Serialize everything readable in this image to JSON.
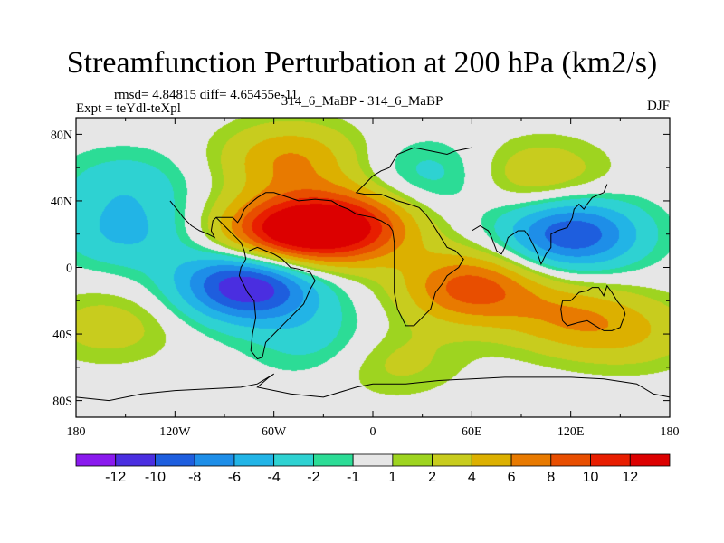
{
  "chart_data": {
    "type": "heatmap",
    "title": "Streamfunction Perturbation at 200 hPa (km2/s)",
    "stats_text": "rmsd= 4.84815 diff= 4.65455e-11",
    "experiment_text": "Expt = teYdl-teXpl",
    "comparison_text": "314_6_MaBP - 314_6_MaBP",
    "season": "DJF",
    "x_ticks": [
      "180",
      "120W",
      "60W",
      "0",
      "60E",
      "120E",
      "180"
    ],
    "x_tick_values": [
      -180,
      -120,
      -60,
      0,
      60,
      120,
      180
    ],
    "y_ticks": [
      "80N",
      "40N",
      "0",
      "40S",
      "80S"
    ],
    "y_tick_values": [
      80,
      40,
      0,
      -40,
      -80
    ],
    "xlim": [
      -180,
      180
    ],
    "ylim": [
      -90,
      90
    ],
    "colorbar": {
      "labels": [
        "-12",
        "-10",
        "-8",
        "-6",
        "-4",
        "-2",
        "-1",
        "1",
        "2",
        "4",
        "6",
        "8",
        "10",
        "12"
      ],
      "levels": [
        -12,
        -10,
        -8,
        -6,
        -4,
        -2,
        -1,
        1,
        2,
        4,
        6,
        8,
        10,
        12
      ],
      "colors": [
        "#8a1aee",
        "#4a2ee0",
        "#1e5ede",
        "#1e8ee8",
        "#22b4e6",
        "#2ed2d2",
        "#2cdc96",
        "#e6e6e6",
        "#9ed420",
        "#c8cc1e",
        "#dcb000",
        "#e87a00",
        "#e84e00",
        "#e81e00",
        "#dc0000"
      ]
    },
    "features": [
      {
        "type": "low",
        "lon": -75,
        "lat": -10,
        "value": -13
      },
      {
        "type": "low",
        "lon": 120,
        "lat": 20,
        "value": -10
      },
      {
        "type": "low",
        "lon": -150,
        "lat": 20,
        "value": -4
      },
      {
        "type": "low",
        "lon": -150,
        "lat": 50,
        "value": -3
      },
      {
        "type": "low",
        "lon": -30,
        "lat": -45,
        "value": -3
      },
      {
        "type": "low",
        "lon": 35,
        "lat": 55,
        "value": -3
      },
      {
        "type": "high",
        "lon": -55,
        "lat": 20,
        "value": 12
      },
      {
        "type": "high",
        "lon": -15,
        "lat": 25,
        "value": 11
      },
      {
        "type": "high",
        "lon": 60,
        "lat": -12,
        "value": 9
      },
      {
        "type": "high",
        "lon": 120,
        "lat": -30,
        "value": 5
      },
      {
        "type": "high",
        "lon": -50,
        "lat": 65,
        "value": 6
      },
      {
        "type": "high",
        "lon": 100,
        "lat": 55,
        "value": 4
      },
      {
        "type": "high",
        "lon": 10,
        "lat": -55,
        "value": 3
      },
      {
        "type": "high",
        "lon": 160,
        "lat": -40,
        "value": 3
      },
      {
        "type": "high",
        "lon": -160,
        "lat": -35,
        "value": 3
      }
    ]
  }
}
